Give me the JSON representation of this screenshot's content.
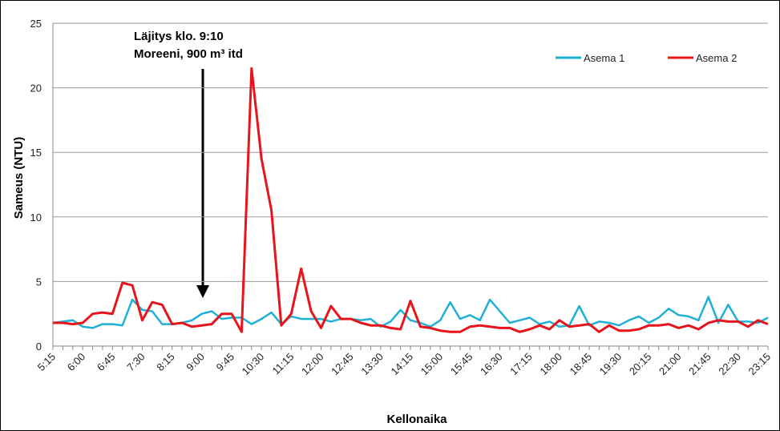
{
  "chart_data": {
    "type": "line",
    "annotation": [
      "Läjitys klo. 9:10",
      "Moreeni, 900 m³ itd"
    ],
    "x_label": "Kellonaika",
    "y_label": "Sameus (NTU)",
    "categories": [
      "5:15",
      null,
      null,
      "6:00",
      null,
      null,
      "6:45",
      null,
      null,
      "7:30",
      null,
      null,
      "8:15",
      null,
      null,
      "9:00",
      null,
      null,
      "9:45",
      null,
      null,
      "10:30",
      null,
      null,
      "11:15",
      null,
      null,
      "12:00",
      null,
      null,
      "12:45",
      null,
      null,
      "13:30",
      null,
      null,
      "14:15",
      null,
      null,
      "15:00",
      null,
      null,
      "15:45",
      null,
      null,
      "16:30",
      null,
      null,
      "17:15",
      null,
      null,
      "18:00",
      null,
      null,
      "18:45",
      null,
      null,
      "19:30",
      null,
      null,
      "20:15",
      null,
      null,
      "21:00",
      null,
      null,
      "21:45",
      null,
      null,
      "22:30",
      null,
      null,
      "23:15"
    ],
    "series": [
      {
        "name": "Asema 1",
        "color": "#1fb0d8",
        "values": [
          1.8,
          1.9,
          2.0,
          1.5,
          1.4,
          1.7,
          1.7,
          1.6,
          3.6,
          2.8,
          2.7,
          1.7,
          1.7,
          1.8,
          2.0,
          2.5,
          2.7,
          2.1,
          2.2,
          2.2,
          1.7,
          2.1,
          2.6,
          1.7,
          2.3,
          2.1,
          2.1,
          2.1,
          1.9,
          2.1,
          2.1,
          2.0,
          2.1,
          1.5,
          1.9,
          2.8,
          2.0,
          1.8,
          1.5,
          2.0,
          3.4,
          2.1,
          2.4,
          2.0,
          3.6,
          2.7,
          1.8,
          2.0,
          2.2,
          1.7,
          1.9,
          1.5,
          1.6,
          3.1,
          1.6,
          1.9,
          1.8,
          1.6,
          2.0,
          2.3,
          1.8,
          2.2,
          2.9,
          2.4,
          2.3,
          2.0,
          3.8,
          1.8,
          3.2,
          1.9,
          1.9,
          1.8,
          2.2
        ]
      },
      {
        "name": "Asema 2",
        "color": "#e8141c",
        "values": [
          1.8,
          1.8,
          1.7,
          1.8,
          2.5,
          2.6,
          2.5,
          4.9,
          4.7,
          2.0,
          3.4,
          3.2,
          1.7,
          1.8,
          1.5,
          1.6,
          1.7,
          2.5,
          2.5,
          1.1,
          21.5,
          14.5,
          10.5,
          1.6,
          2.5,
          6.0,
          2.7,
          1.4,
          3.1,
          2.1,
          2.1,
          1.8,
          1.6,
          1.6,
          1.4,
          1.3,
          3.5,
          1.5,
          1.4,
          1.2,
          1.1,
          1.1,
          1.5,
          1.6,
          1.5,
          1.4,
          1.4,
          1.1,
          1.3,
          1.6,
          1.3,
          2.0,
          1.5,
          1.6,
          1.7,
          1.1,
          1.6,
          1.2,
          1.2,
          1.3,
          1.6,
          1.6,
          1.7,
          1.4,
          1.6,
          1.3,
          1.8,
          2.0,
          1.9,
          1.9,
          1.5,
          2.0,
          1.7
        ]
      }
    ],
    "ylim": [
      0,
      25
    ],
    "yticks": [
      0,
      5,
      10,
      15,
      20,
      25
    ],
    "grid": true,
    "legend": "top-right"
  }
}
